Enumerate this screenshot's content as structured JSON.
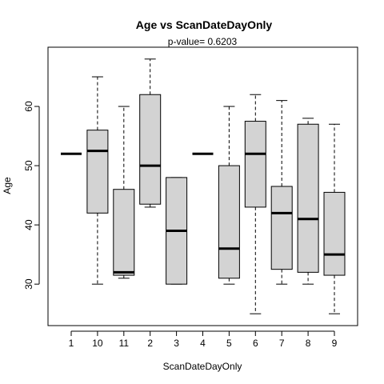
{
  "chart_data": {
    "type": "boxplot",
    "title": "Age  vs  ScanDateDayOnly",
    "subtitle": "p-value= 0.6203",
    "xlabel": "ScanDateDayOnly",
    "ylabel": "Age",
    "ylim": [
      23,
      70
    ],
    "yticks": [
      30,
      40,
      50,
      60
    ],
    "grid": false,
    "legend": "none",
    "box_fill": "#d3d3d3",
    "categories": [
      "1",
      "10",
      "11",
      "2",
      "3",
      "4",
      "5",
      "6",
      "7",
      "8",
      "9"
    ],
    "boxes": [
      {
        "min": 52,
        "q1": 52,
        "median": 52,
        "q3": 52,
        "max": 52
      },
      {
        "min": 30,
        "q1": 42,
        "median": 52.5,
        "q3": 56,
        "max": 65
      },
      {
        "min": 31,
        "q1": 31.5,
        "median": 32,
        "q3": 46,
        "max": 60
      },
      {
        "min": 43,
        "q1": 43.5,
        "median": 50,
        "q3": 62,
        "max": 68
      },
      {
        "min": 30,
        "q1": 30,
        "median": 39,
        "q3": 48,
        "max": 48
      },
      {
        "min": 52,
        "q1": 52,
        "median": 52,
        "q3": 52,
        "max": 52
      },
      {
        "min": 30,
        "q1": 31,
        "median": 36,
        "q3": 50,
        "max": 60
      },
      {
        "min": 25,
        "q1": 43,
        "median": 52,
        "q3": 57.5,
        "max": 62
      },
      {
        "min": 30,
        "q1": 32.5,
        "median": 42,
        "q3": 46.5,
        "max": 61
      },
      {
        "min": 30,
        "q1": 32,
        "median": 41,
        "q3": 57,
        "max": 58
      },
      {
        "min": 25,
        "q1": 31.5,
        "median": 35,
        "q3": 45.5,
        "max": 57
      }
    ]
  }
}
